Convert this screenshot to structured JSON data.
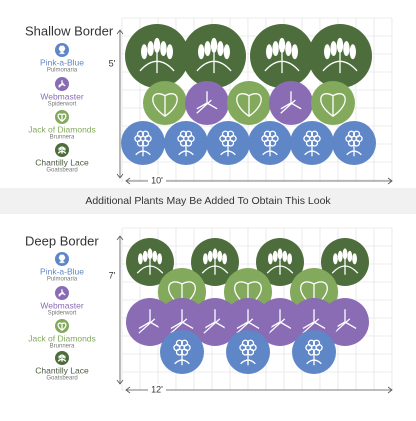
{
  "sections": [
    {
      "title": "Shallow Border",
      "depth": "5'",
      "width": "10'",
      "legend": [
        {
          "name": "Pink-a-Blue",
          "species": "Pulmonaria"
        },
        {
          "name": "Webmaster",
          "species": "Spiderwort"
        },
        {
          "name": "Jack of Diamonds",
          "species": "Brunnera"
        },
        {
          "name": "Chantilly Lace",
          "species": "Goatsbeard"
        }
      ]
    },
    {
      "title": "Deep Border",
      "depth": "7'",
      "width": "12'",
      "legend": [
        {
          "name": "Pink-a-Blue",
          "species": "Pulmonaria"
        },
        {
          "name": "Webmaster",
          "species": "Spiderwort"
        },
        {
          "name": "Jack of Diamonds",
          "species": "Brunnera"
        },
        {
          "name": "Chantilly Lace",
          "species": "Goatsbeard"
        }
      ]
    }
  ],
  "note": "Additional Plants May Be Added To Obtain This Look"
}
